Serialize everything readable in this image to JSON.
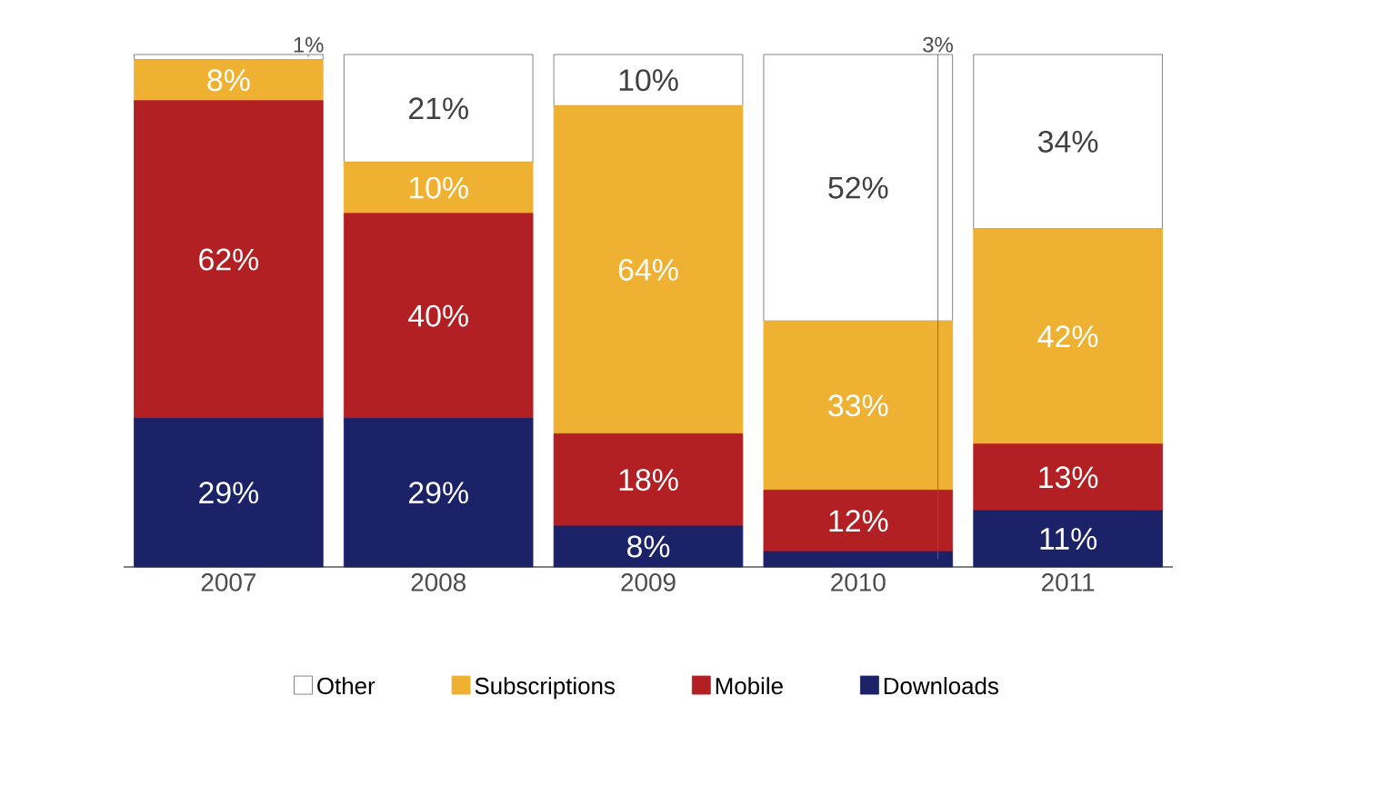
{
  "chart_data": {
    "type": "bar",
    "stacked": true,
    "categories": [
      "2007",
      "2008",
      "2009",
      "2010",
      "2011"
    ],
    "series": [
      {
        "name": "Downloads",
        "color": "#1b2268",
        "values": [
          29,
          29,
          8,
          3,
          11
        ],
        "value_labels": [
          "29%",
          "29%",
          "8%",
          "3%",
          "11%"
        ]
      },
      {
        "name": "Mobile",
        "color": "#b32024",
        "values": [
          62,
          40,
          18,
          12,
          13
        ],
        "value_labels": [
          "62%",
          "40%",
          "18%",
          "12%",
          "13%"
        ]
      },
      {
        "name": "Subscriptions",
        "color": "#efb131",
        "values": [
          8,
          10,
          64,
          33,
          42
        ],
        "value_labels": [
          "8%",
          "10%",
          "64%",
          "33%",
          "42%"
        ]
      },
      {
        "name": "Other",
        "color": "#ffffff",
        "values": [
          1,
          21,
          10,
          52,
          34
        ],
        "value_labels": [
          "1%",
          "21%",
          "10%",
          "52%",
          "34%"
        ]
      }
    ],
    "legend": "bottom",
    "tick_labels": "x"
  }
}
